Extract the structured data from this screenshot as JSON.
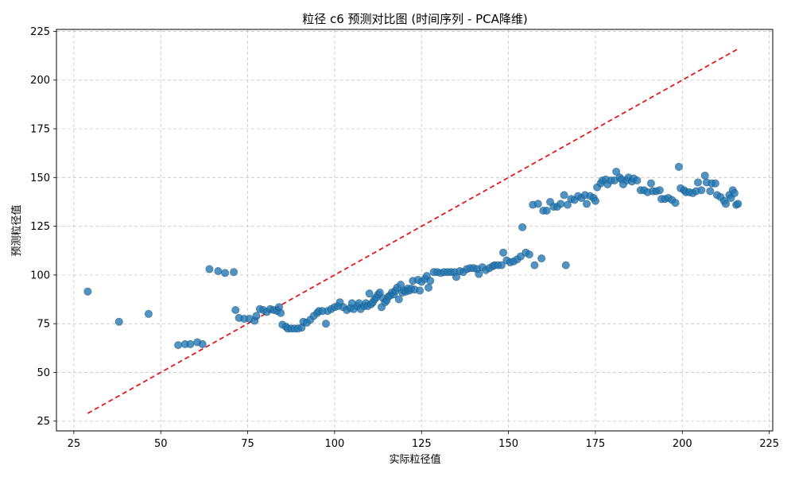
{
  "chart_data": {
    "type": "scatter",
    "title": "粒径 c6 预测对比图 (时间序列 - PCA降维)",
    "xlabel": "实际粒径值",
    "ylabel": "预测粒径值",
    "xlim": [
      20,
      226
    ],
    "ylim": [
      20,
      226
    ],
    "xticks": [
      25,
      50,
      75,
      100,
      125,
      150,
      175,
      200,
      225
    ],
    "yticks": [
      25,
      50,
      75,
      100,
      125,
      150,
      175,
      200,
      225
    ],
    "grid": true,
    "reference_line": {
      "style": "dashed",
      "from": [
        29,
        29
      ],
      "to": [
        216,
        216
      ]
    },
    "points": [
      [
        29,
        91.5
      ],
      [
        38,
        76
      ],
      [
        46.5,
        80
      ],
      [
        55,
        64
      ],
      [
        57,
        64.5
      ],
      [
        58.5,
        64.5
      ],
      [
        60.5,
        65.5
      ],
      [
        62,
        64.5
      ],
      [
        64,
        103
      ],
      [
        66.5,
        102
      ],
      [
        68.5,
        101
      ],
      [
        71,
        101.5
      ],
      [
        71.5,
        82
      ],
      [
        72.5,
        78
      ],
      [
        74,
        77.5
      ],
      [
        75.5,
        77.5
      ],
      [
        77,
        76.5
      ],
      [
        77.5,
        79
      ],
      [
        78.5,
        82.5
      ],
      [
        79.5,
        82
      ],
      [
        80.5,
        81
      ],
      [
        81.5,
        82.5
      ],
      [
        82.5,
        82
      ],
      [
        83.5,
        81.5
      ],
      [
        84,
        83.5
      ],
      [
        84.5,
        80.5
      ],
      [
        85,
        74.5
      ],
      [
        86,
        73.5
      ],
      [
        86.5,
        72.5
      ],
      [
        87.5,
        72.5
      ],
      [
        88.5,
        72.5
      ],
      [
        89.5,
        72.5
      ],
      [
        90.5,
        73
      ],
      [
        91,
        76
      ],
      [
        92,
        75.5
      ],
      [
        93,
        77
      ],
      [
        94,
        79
      ],
      [
        95,
        80.5
      ],
      [
        95.5,
        81.5
      ],
      [
        96.5,
        81.5
      ],
      [
        97.5,
        75
      ],
      [
        98,
        81.5
      ],
      [
        99,
        82.5
      ],
      [
        100,
        83.5
      ],
      [
        101,
        84
      ],
      [
        101.5,
        86
      ],
      [
        102.5,
        83.5
      ],
      [
        103.5,
        82
      ],
      [
        104.5,
        83
      ],
      [
        105,
        85.5
      ],
      [
        105.5,
        82.5
      ],
      [
        106.5,
        84
      ],
      [
        107,
        85.5
      ],
      [
        107.5,
        82.5
      ],
      [
        108.5,
        84
      ],
      [
        109,
        85.5
      ],
      [
        109.5,
        84
      ],
      [
        110,
        90.5
      ],
      [
        110.5,
        85
      ],
      [
        111,
        86
      ],
      [
        111.5,
        87.5
      ],
      [
        112,
        88.5
      ],
      [
        112.5,
        90
      ],
      [
        113,
        91
      ],
      [
        113.5,
        83.5
      ],
      [
        114,
        88
      ],
      [
        114.5,
        86
      ],
      [
        115,
        87
      ],
      [
        115.5,
        89
      ],
      [
        116,
        89.5
      ],
      [
        116.5,
        91
      ],
      [
        117,
        90
      ],
      [
        117.5,
        92
      ],
      [
        118,
        93.5
      ],
      [
        118.5,
        87.5
      ],
      [
        119,
        95
      ],
      [
        119.5,
        91
      ],
      [
        120,
        92
      ],
      [
        120.5,
        91.5
      ],
      [
        121,
        93
      ],
      [
        121.5,
        92
      ],
      [
        122,
        93
      ],
      [
        122.5,
        97
      ],
      [
        123,
        92.5
      ],
      [
        124,
        97.5
      ],
      [
        124.5,
        92
      ],
      [
        125,
        96.5
      ],
      [
        126,
        98
      ],
      [
        126.5,
        99.5
      ],
      [
        127,
        93.5
      ],
      [
        127.5,
        97
      ],
      [
        128.5,
        101.5
      ],
      [
        129.5,
        101.5
      ],
      [
        130.5,
        101
      ],
      [
        131.5,
        101.5
      ],
      [
        132.5,
        101.5
      ],
      [
        133.5,
        101.5
      ],
      [
        134.5,
        101.5
      ],
      [
        135,
        99
      ],
      [
        136,
        102
      ],
      [
        137,
        101.5
      ],
      [
        138,
        103
      ],
      [
        139,
        103.5
      ],
      [
        140,
        103.5
      ],
      [
        141,
        103
      ],
      [
        141.5,
        100.5
      ],
      [
        142.5,
        104
      ],
      [
        143.5,
        102.5
      ],
      [
        144.5,
        103.5
      ],
      [
        145.5,
        104.5
      ],
      [
        146,
        105
      ],
      [
        147,
        105
      ],
      [
        148,
        105
      ],
      [
        148.5,
        111.5
      ],
      [
        149.5,
        107.5
      ],
      [
        150.5,
        106.5
      ],
      [
        151.5,
        107
      ],
      [
        152.5,
        108
      ],
      [
        153.5,
        109.5
      ],
      [
        154,
        124.5
      ],
      [
        155,
        111.5
      ],
      [
        156,
        110.5
      ],
      [
        157,
        136
      ],
      [
        157.5,
        105
      ],
      [
        158.5,
        136.5
      ],
      [
        159.5,
        108.5
      ],
      [
        160,
        133
      ],
      [
        161,
        133
      ],
      [
        162,
        137.5
      ],
      [
        163,
        135
      ],
      [
        164,
        135
      ],
      [
        165,
        136.5
      ],
      [
        166,
        141
      ],
      [
        166.5,
        105
      ],
      [
        167,
        136
      ],
      [
        168,
        139
      ],
      [
        169,
        138.5
      ],
      [
        170,
        140.5
      ],
      [
        171,
        139.5
      ],
      [
        172,
        141
      ],
      [
        172.5,
        136.5
      ],
      [
        173.5,
        140.5
      ],
      [
        174.5,
        139.5
      ],
      [
        175,
        138
      ],
      [
        175.5,
        145
      ],
      [
        176.5,
        147
      ],
      [
        177,
        148.5
      ],
      [
        178,
        149
      ],
      [
        178.5,
        146.5
      ],
      [
        179.5,
        148.5
      ],
      [
        180.5,
        148.5
      ],
      [
        181,
        153
      ],
      [
        182,
        150
      ],
      [
        182.5,
        149
      ],
      [
        183,
        146.5
      ],
      [
        184,
        148.5
      ],
      [
        184.5,
        150
      ],
      [
        185.5,
        148
      ],
      [
        186,
        149.5
      ],
      [
        187,
        148.5
      ],
      [
        188,
        143.5
      ],
      [
        189,
        143.5
      ],
      [
        190,
        142.5
      ],
      [
        191,
        147
      ],
      [
        191.5,
        143
      ],
      [
        192.5,
        143
      ],
      [
        193.5,
        143.5
      ],
      [
        194,
        139
      ],
      [
        195,
        139
      ],
      [
        196,
        139.5
      ],
      [
        197,
        138.5
      ],
      [
        198,
        137
      ],
      [
        199,
        155.5
      ],
      [
        199.5,
        144.5
      ],
      [
        200.5,
        143.5
      ],
      [
        201,
        142.5
      ],
      [
        202,
        142.5
      ],
      [
        203,
        142
      ],
      [
        204,
        143
      ],
      [
        204.5,
        147.5
      ],
      [
        205.5,
        143.5
      ],
      [
        206.5,
        151
      ],
      [
        207,
        147.5
      ],
      [
        208,
        143
      ],
      [
        208.5,
        147
      ],
      [
        209.5,
        147
      ],
      [
        210,
        141
      ],
      [
        211,
        140
      ],
      [
        212,
        138
      ],
      [
        212.5,
        136.5
      ],
      [
        213.5,
        141
      ],
      [
        214,
        139.5
      ],
      [
        214.5,
        143.5
      ],
      [
        215,
        142
      ],
      [
        215.5,
        136
      ],
      [
        216,
        136.5
      ]
    ]
  },
  "colors": {
    "points": "#1f77b4",
    "reference_line": "#e41a1c"
  }
}
